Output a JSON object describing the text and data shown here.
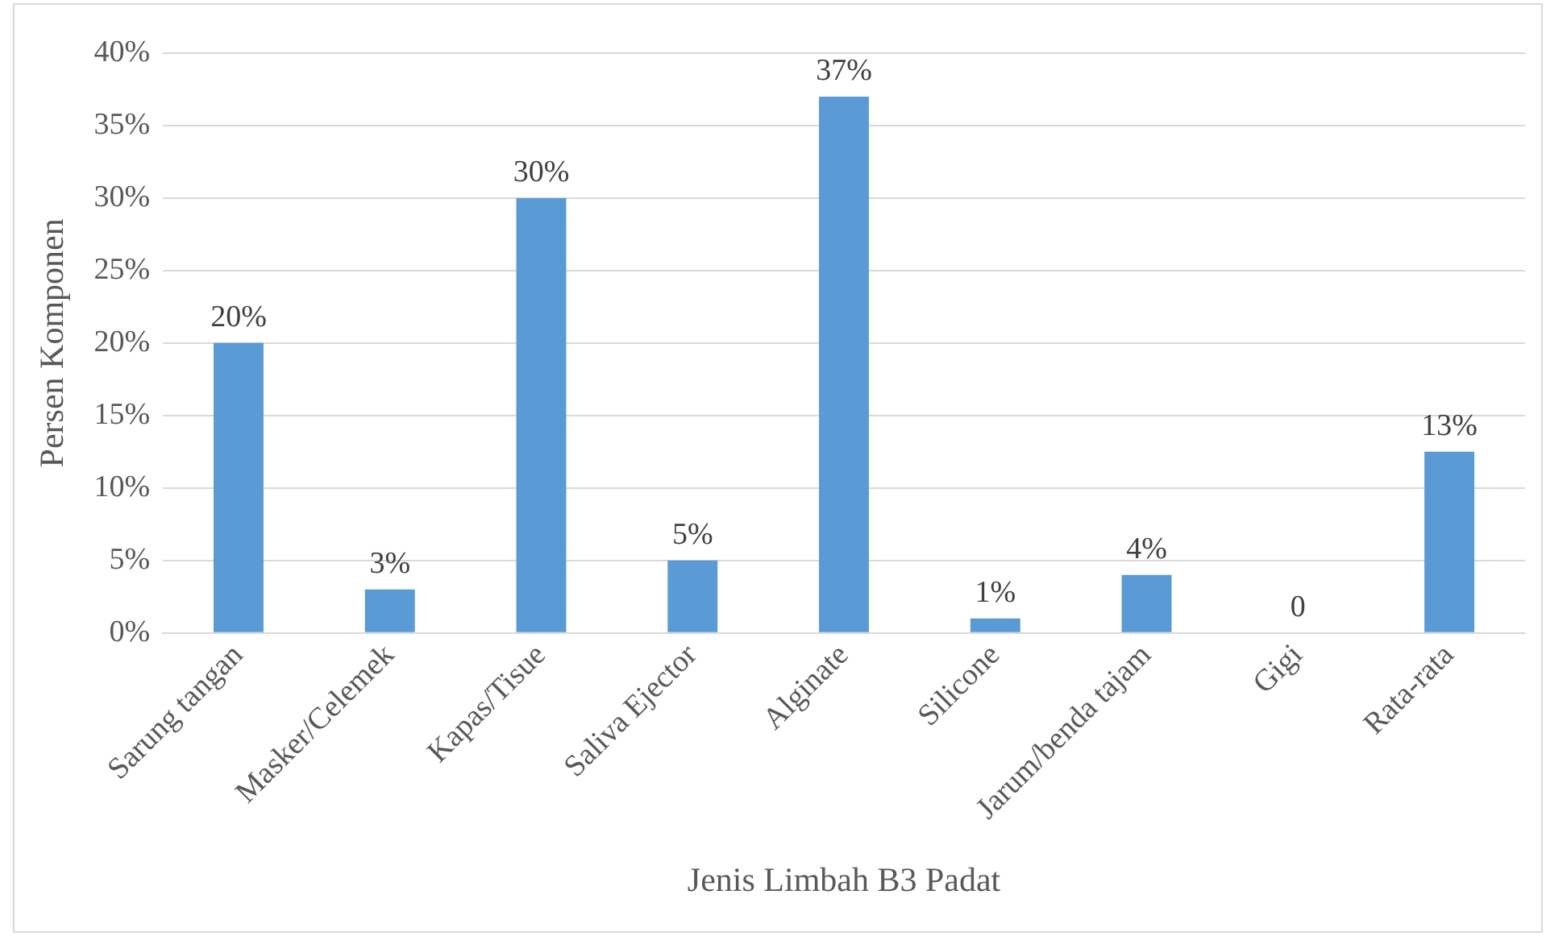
{
  "chart_data": {
    "type": "bar",
    "xlabel": "Jenis Limbah B3 Padat",
    "ylabel": "Persen Komponen",
    "categories": [
      "Sarung tangan",
      "Masker/Celemek",
      "Kapas/Tisue",
      "Saliva Ejector",
      "Alginate",
      "Silicone",
      "Jarum/benda tajam",
      "Gigi",
      "Rata-rata"
    ],
    "values": [
      20,
      3,
      30,
      5,
      37,
      1,
      4,
      0,
      12.5
    ],
    "value_labels": [
      "20%",
      "3%",
      "30%",
      "5%",
      "37%",
      "1%",
      "4%",
      "0",
      "13%"
    ],
    "color": "#5b9bd5",
    "ylim": [
      0,
      40
    ],
    "yticks": [
      {
        "value": 0,
        "label": "0%"
      },
      {
        "value": 5,
        "label": "5%"
      },
      {
        "value": 10,
        "label": "10%"
      },
      {
        "value": 15,
        "label": "15%"
      },
      {
        "value": 20,
        "label": "20%"
      },
      {
        "value": 25,
        "label": "25%"
      },
      {
        "value": 30,
        "label": "30%"
      },
      {
        "value": 35,
        "label": "35%"
      },
      {
        "value": 40,
        "label": "40%"
      }
    ],
    "grid": "y",
    "legend": false
  }
}
